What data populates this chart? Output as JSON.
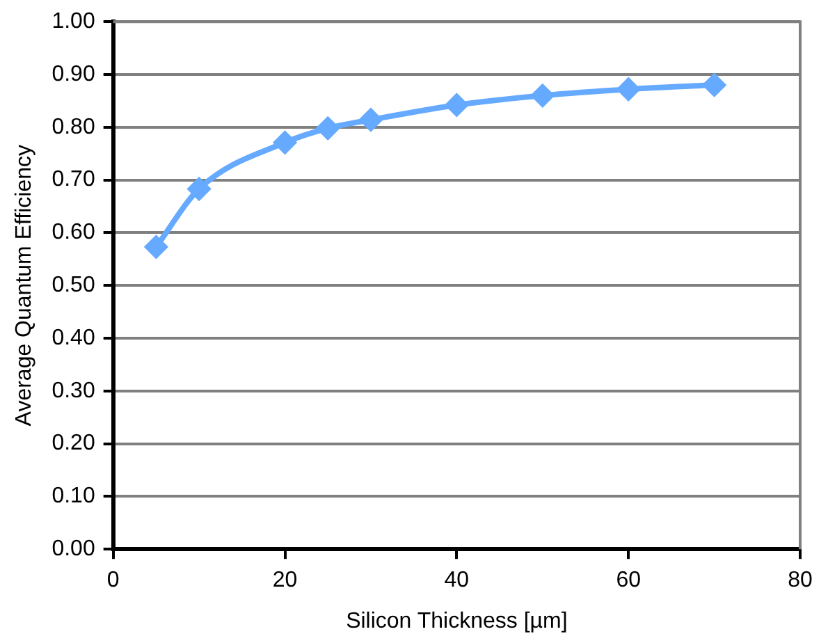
{
  "chart_data": {
    "type": "line",
    "xlabel": "Silicon Thickness [µm]",
    "ylabel": "Average Quantum Efficiency",
    "series": [
      {
        "color": "#66aaff",
        "x": [
          5,
          10,
          20,
          25,
          30,
          40,
          50,
          60,
          70
        ],
        "values": [
          0.573,
          0.683,
          0.771,
          0.798,
          0.814,
          0.842,
          0.86,
          0.872,
          0.88
        ]
      }
    ],
    "xlim": [
      0,
      80
    ],
    "xticks": [
      0,
      20,
      40,
      60,
      80
    ],
    "ylim": [
      0,
      1
    ],
    "yticks": [
      {
        "value": 0,
        "label": "0.00"
      },
      {
        "value": 0.1,
        "label": "0.10"
      },
      {
        "value": 0.2,
        "label": "0.20"
      },
      {
        "value": 0.3,
        "label": "0.30"
      },
      {
        "value": 0.4,
        "label": "0.40"
      },
      {
        "value": 0.5,
        "label": "0.50"
      },
      {
        "value": 0.6,
        "label": "0.60"
      },
      {
        "value": 0.7,
        "label": "0.70"
      },
      {
        "value": 0.8,
        "label": "0.80"
      },
      {
        "value": 0.9,
        "label": "0.90"
      },
      {
        "value": 1,
        "label": "1.00"
      }
    ],
    "grid": "y",
    "legend": false,
    "marker": "diamond",
    "line_style": "solid"
  }
}
